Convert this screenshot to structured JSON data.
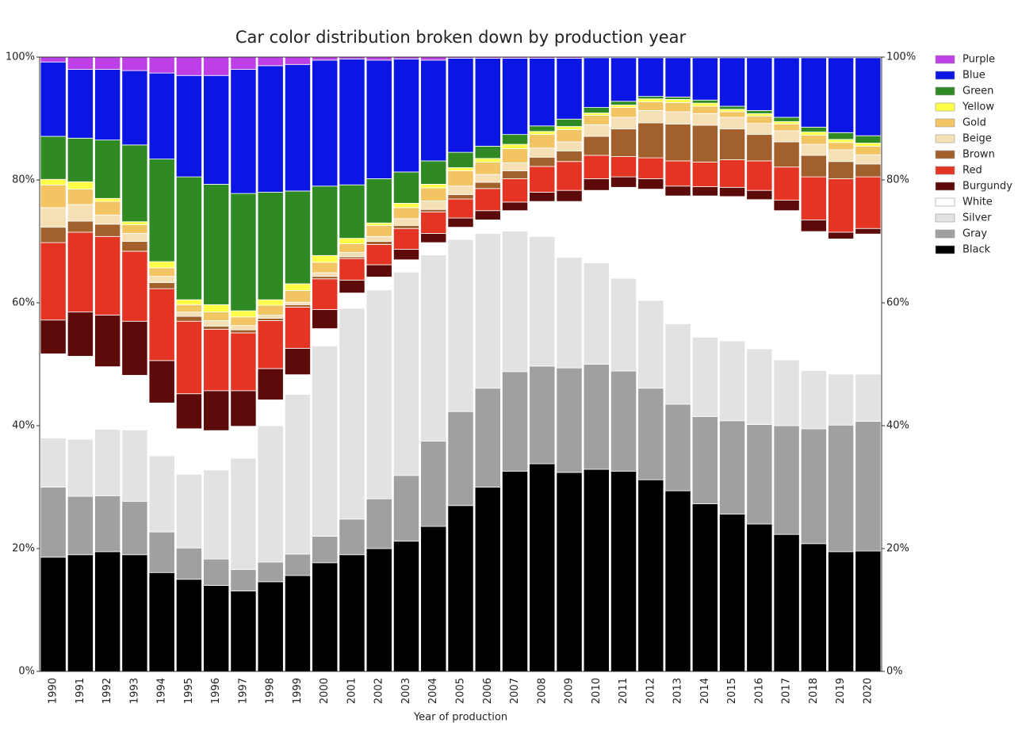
{
  "chart_data": {
    "type": "stacked-bar",
    "title": "Car color distribution broken down by production year",
    "x_label": "Year of production",
    "categories": [
      "1990",
      "1991",
      "1992",
      "1993",
      "1994",
      "1995",
      "1996",
      "1997",
      "1998",
      "1999",
      "2000",
      "2001",
      "2002",
      "2003",
      "2004",
      "2005",
      "2006",
      "2007",
      "2008",
      "2009",
      "2010",
      "2011",
      "2012",
      "2013",
      "2014",
      "2015",
      "2016",
      "2017",
      "2018",
      "2019",
      "2020"
    ],
    "ylim": [
      0,
      100
    ],
    "yticks": [
      {
        "value": 0,
        "label": "0%"
      },
      {
        "value": 20,
        "label": "20%"
      },
      {
        "value": 40,
        "label": "40%"
      },
      {
        "value": 60,
        "label": "60%"
      },
      {
        "value": 80,
        "label": "80%"
      },
      {
        "value": 100,
        "label": "100%"
      }
    ],
    "legend": "outside-right",
    "series": [
      {
        "name": "Black",
        "color": "#000000",
        "values": [
          18.6,
          19,
          19.5,
          19,
          16.1,
          15,
          14,
          13.1,
          14.6,
          15.6,
          17.7,
          19,
          20,
          21.2,
          23.6,
          27,
          30,
          32.6,
          33.8,
          32.4,
          32.9,
          32.6,
          31.2,
          29.4,
          27.3,
          25.6,
          24,
          22.3,
          20.8,
          19.5,
          19.6
        ]
      },
      {
        "name": "Gray",
        "color": "#a0a0a0",
        "values": [
          11.4,
          9.5,
          9.1,
          8.7,
          6.6,
          5.1,
          4.3,
          3.5,
          3.2,
          3.5,
          4.3,
          5.8,
          8.1,
          10.7,
          13.9,
          15.3,
          16.1,
          16.2,
          15.9,
          17,
          17.1,
          16.3,
          14.9,
          14.1,
          14.2,
          15.2,
          16.2,
          17.7,
          18.7,
          20.6,
          21.1
        ]
      },
      {
        "name": "Silver",
        "color": "#e2e2e2",
        "values": [
          8,
          9.3,
          10.8,
          11.6,
          12.4,
          12,
          14.5,
          18.1,
          22.2,
          26,
          31,
          34.3,
          34,
          33.1,
          30.3,
          28,
          25.2,
          22.9,
          21.1,
          18,
          16.5,
          15.1,
          14.3,
          13.1,
          12.9,
          13,
          12.3,
          10.7,
          9.5,
          8.3,
          7.7
        ]
      },
      {
        "name": "White",
        "color": "#ffffff",
        "values": [
          13.7,
          13.5,
          10.2,
          8.9,
          8.6,
          7.4,
          6.4,
          5.2,
          4.2,
          3.2,
          2.8,
          2.5,
          2.1,
          2,
          2,
          2,
          2.2,
          3.3,
          5.7,
          9.1,
          11.8,
          14.8,
          18.1,
          20.8,
          23,
          23.5,
          24.3,
          24.3,
          22.6,
          22,
          22.8
        ]
      },
      {
        "name": "Burgundy",
        "color": "#5c0a0a",
        "values": [
          5.5,
          7.2,
          8.4,
          8.8,
          6.9,
          5.7,
          6.5,
          5.8,
          5.1,
          4.3,
          3.1,
          2.1,
          2,
          1.7,
          1.5,
          1.5,
          1.5,
          1.4,
          1.5,
          1.8,
          1.9,
          1.7,
          1.7,
          1.6,
          1.5,
          1.5,
          1.5,
          1.7,
          1.9,
          1.1,
          0.9
        ]
      },
      {
        "name": "Red",
        "color": "#e43424",
        "values": [
          12.6,
          13,
          12.8,
          11.4,
          11.7,
          11.8,
          10,
          9.4,
          7.8,
          6.7,
          5,
          3.5,
          3.3,
          3.4,
          3.5,
          3.1,
          3.6,
          3.8,
          4.2,
          4.7,
          3.8,
          3.3,
          3.4,
          4.1,
          4,
          4.5,
          4.8,
          5.4,
          7,
          8.7,
          8.4
        ]
      },
      {
        "name": "Brown",
        "color": "#a2602c",
        "values": [
          2.5,
          1.8,
          2,
          1.6,
          1,
          0.8,
          0.5,
          0.5,
          0.4,
          0.4,
          0.4,
          0.3,
          0.5,
          0.5,
          0.4,
          0.7,
          1,
          1.3,
          1.5,
          1.7,
          3.1,
          4.5,
          5.7,
          6,
          6,
          5,
          4.3,
          4.1,
          3.5,
          2.8,
          2.1
        ]
      },
      {
        "name": "Beige",
        "color": "#f5dfb4",
        "values": [
          3.2,
          2.7,
          1.5,
          1.3,
          1,
          0.7,
          0.9,
          0.7,
          0.5,
          0.4,
          0.6,
          0.7,
          0.8,
          1.1,
          1.4,
          1.4,
          1.3,
          1.3,
          1.5,
          1.5,
          1.9,
          1.9,
          2,
          2,
          1.9,
          1.9,
          1.8,
          1.8,
          1.8,
          1.9,
          1.5
        ]
      },
      {
        "name": "Gold",
        "color": "#f2c462",
        "values": [
          3.7,
          2.5,
          2.2,
          1.4,
          1.4,
          1.2,
          1.4,
          1.4,
          1.6,
          1.9,
          1.7,
          1.4,
          1.8,
          1.8,
          2.1,
          2.5,
          2,
          2.3,
          2.2,
          2,
          1.5,
          1.6,
          1.4,
          1.5,
          1.2,
          0.9,
          1.2,
          1.1,
          1.5,
          1.2,
          1.4
        ]
      },
      {
        "name": "Yellow",
        "color": "#ffff48",
        "values": [
          0.9,
          1.2,
          0.5,
          0.5,
          1,
          0.8,
          1.2,
          1,
          0.9,
          1.1,
          1.1,
          0.9,
          0.4,
          0.7,
          0.6,
          0.5,
          0.6,
          0.7,
          0.5,
          0.5,
          0.4,
          0.4,
          0.5,
          0.5,
          0.5,
          0.4,
          0.4,
          0.4,
          0.5,
          0.5,
          0.5
        ]
      },
      {
        "name": "Green",
        "color": "#2f8a24",
        "values": [
          7,
          7.1,
          9.5,
          12.5,
          16.7,
          20,
          19.6,
          19.1,
          17.5,
          15.1,
          11.3,
          8.7,
          7.2,
          5.1,
          3.8,
          2.5,
          2,
          1.6,
          0.9,
          1.2,
          0.9,
          0.6,
          0.4,
          0.4,
          0.5,
          0.5,
          0.5,
          0.7,
          0.8,
          1.1,
          1.2
        ]
      },
      {
        "name": "Blue",
        "color": "#0b16e4",
        "values": [
          12.1,
          11.2,
          11.5,
          12.1,
          14,
          16.5,
          17.7,
          20.2,
          20.6,
          20.6,
          20.5,
          20.5,
          19.3,
          18.4,
          16.4,
          15.3,
          14.3,
          12.4,
          11,
          9.9,
          8.1,
          7.1,
          6.3,
          6.4,
          6.9,
          7.9,
          8.6,
          9.7,
          11.3,
          12.2,
          12.7
        ]
      },
      {
        "name": "Purple",
        "color": "#be3ee8",
        "values": [
          0.8,
          2,
          2,
          2.2,
          2.6,
          3,
          3,
          2,
          1.4,
          1.2,
          0.5,
          0.3,
          0.5,
          0.3,
          0.5,
          0.2,
          0.2,
          0.2,
          0.2,
          0.2,
          0.1,
          0.1,
          0.1,
          0.1,
          0.1,
          0.1,
          0.1,
          0.1,
          0.1,
          0.1,
          0.1
        ]
      }
    ]
  }
}
